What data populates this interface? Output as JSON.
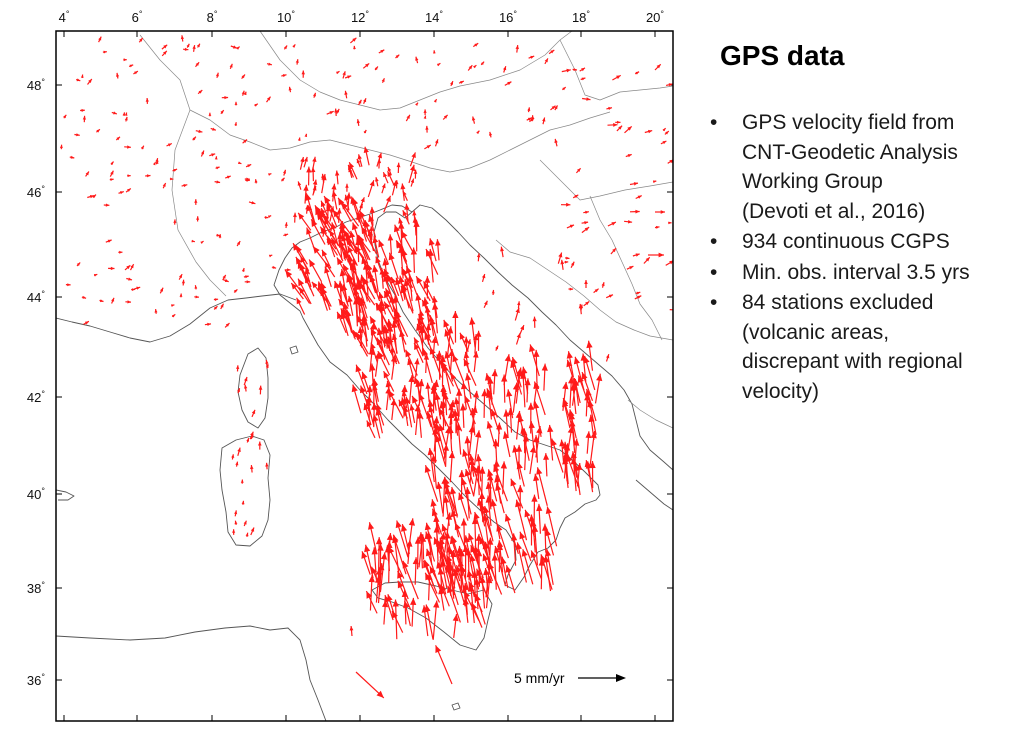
{
  "map": {
    "scale_label": "5 mm/yr",
    "vector_color": "#ff1a1a",
    "lon_labels": [
      "4",
      "6",
      "8",
      "10",
      "12",
      "14",
      "16",
      "18",
      "20"
    ],
    "lat_labels": [
      "48",
      "46",
      "44",
      "42",
      "40",
      "38",
      "36"
    ],
    "degree_symbol": "°"
  },
  "info": {
    "title": "GPS data",
    "bullet_symbol": "•",
    "bullets": [
      {
        "lines": [
          "GPS velocity field from",
          "CNT-Geodetic Analysis",
          "Working Group",
          "(Devoti et al., 2016)"
        ]
      },
      {
        "lines": [
          "934 continuous CGPS"
        ]
      },
      {
        "lines": [
          "Min. obs. interval 3.5 yrs"
        ]
      },
      {
        "lines": [
          "84 stations excluded",
          "(volcanic areas,",
          "discrepant with regional",
          "velocity)"
        ]
      }
    ]
  }
}
